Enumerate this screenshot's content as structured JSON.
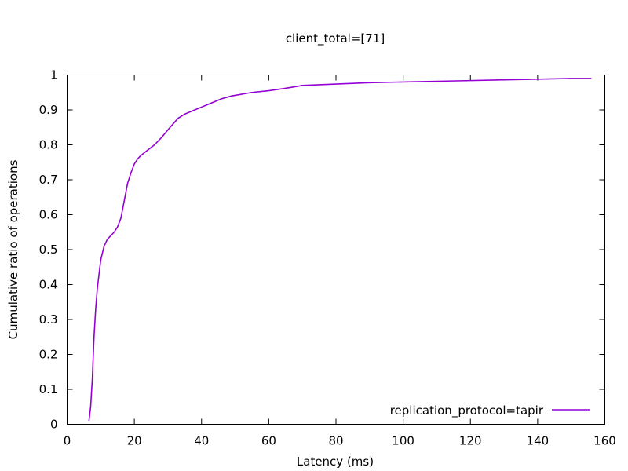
{
  "chart_data": {
    "type": "line",
    "title": "client_total=[71]",
    "xlabel": "Latency (ms)",
    "ylabel": "Cumulative ratio of operations",
    "xlim": [
      0,
      160
    ],
    "ylim": [
      0,
      1
    ],
    "xticks": [
      0,
      20,
      40,
      60,
      80,
      100,
      120,
      140,
      160
    ],
    "yticks": [
      0,
      0.1,
      0.2,
      0.3,
      0.4,
      0.5,
      0.6,
      0.7,
      0.8,
      0.9,
      1
    ],
    "grid": false,
    "legend_position": "bottom-right",
    "series": [
      {
        "name": "replication_protocol=tapir",
        "color": "#9400d3",
        "x": [
          6.5,
          7,
          7.5,
          8,
          8.5,
          9,
          9.5,
          10,
          11,
          12,
          13,
          14,
          15,
          16,
          17,
          18,
          19,
          20,
          21,
          22,
          24,
          26,
          28,
          30,
          32,
          33,
          35,
          38,
          40,
          43,
          46,
          49,
          55,
          60,
          65,
          70,
          80,
          90,
          100,
          110,
          120,
          130,
          140,
          150,
          156
        ],
        "y": [
          0.01,
          0.05,
          0.13,
          0.25,
          0.33,
          0.39,
          0.43,
          0.47,
          0.51,
          0.53,
          0.54,
          0.55,
          0.565,
          0.59,
          0.64,
          0.69,
          0.72,
          0.745,
          0.76,
          0.77,
          0.785,
          0.8,
          0.82,
          0.843,
          0.865,
          0.876,
          0.888,
          0.9,
          0.908,
          0.92,
          0.932,
          0.94,
          0.95,
          0.955,
          0.962,
          0.97,
          0.974,
          0.978,
          0.98,
          0.982,
          0.984,
          0.986,
          0.988,
          0.99,
          0.99
        ]
      }
    ]
  }
}
